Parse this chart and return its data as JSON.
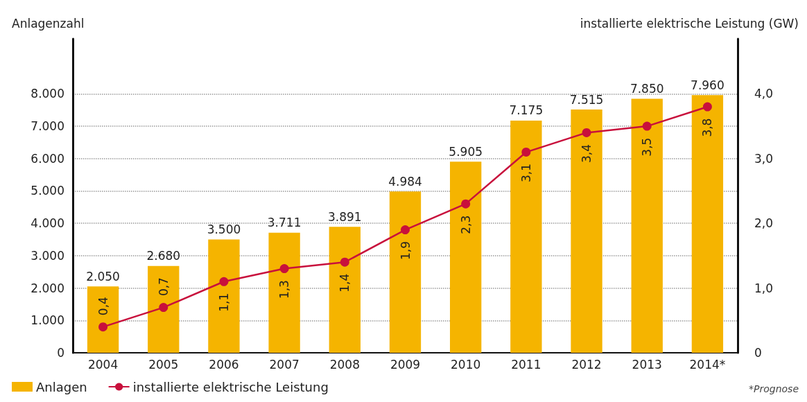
{
  "chart_data": {
    "type": "bar",
    "ylabel": "Anlagenzahl",
    "y2label": "installierte elektrische Leistung (GW)",
    "categories": [
      "2004",
      "2005",
      "2006",
      "2007",
      "2008",
      "2009",
      "2010",
      "2011",
      "2012",
      "2013",
      "2014*"
    ],
    "series": [
      {
        "name": "Anlagen",
        "color": "#f5b400",
        "values": [
          2050,
          2680,
          3500,
          3711,
          3891,
          4984,
          5905,
          7175,
          7515,
          7850,
          7960
        ],
        "value_labels": [
          "2.050",
          "2.680",
          "3.500",
          "3.711",
          "3.891",
          "4.984",
          "5.905",
          "7.175",
          "7.515",
          "7.850",
          "7.960"
        ]
      },
      {
        "name": "installierte elektrische Leistung",
        "type": "line",
        "axis": "y2",
        "color": "#c8103c",
        "marker": "circle",
        "values": [
          0.4,
          0.7,
          1.1,
          1.3,
          1.4,
          1.9,
          2.3,
          3.1,
          3.4,
          3.5,
          3.8
        ],
        "value_labels": [
          "0,4",
          "0,7",
          "1,1",
          "1,3",
          "1,4",
          "1,9",
          "2,3",
          "3,1",
          "3,4",
          "3,5",
          "3,8"
        ]
      }
    ],
    "ylim": [
      0,
      9700
    ],
    "yticks": [
      {
        "value": 0,
        "label": "0"
      },
      {
        "value": 1000,
        "label": "1.000"
      },
      {
        "value": 2000,
        "label": "2.000"
      },
      {
        "value": 3000,
        "label": "3.000"
      },
      {
        "value": 4000,
        "label": "4.000"
      },
      {
        "value": 5000,
        "label": "5.000"
      },
      {
        "value": 6000,
        "label": "6.000"
      },
      {
        "value": 7000,
        "label": "7.000"
      },
      {
        "value": 8000,
        "label": "8.000"
      }
    ],
    "y2lim": [
      0,
      4.85
    ],
    "y2ticks": [
      {
        "value": 0,
        "label": "0"
      },
      {
        "value": 1,
        "label": "1,0"
      },
      {
        "value": 2,
        "label": "2,0"
      },
      {
        "value": 3,
        "label": "3,0"
      },
      {
        "value": 4,
        "label": "4,0"
      }
    ],
    "grid": "y",
    "legend": "bottom left",
    "annotations": [
      "*Prognose"
    ]
  }
}
